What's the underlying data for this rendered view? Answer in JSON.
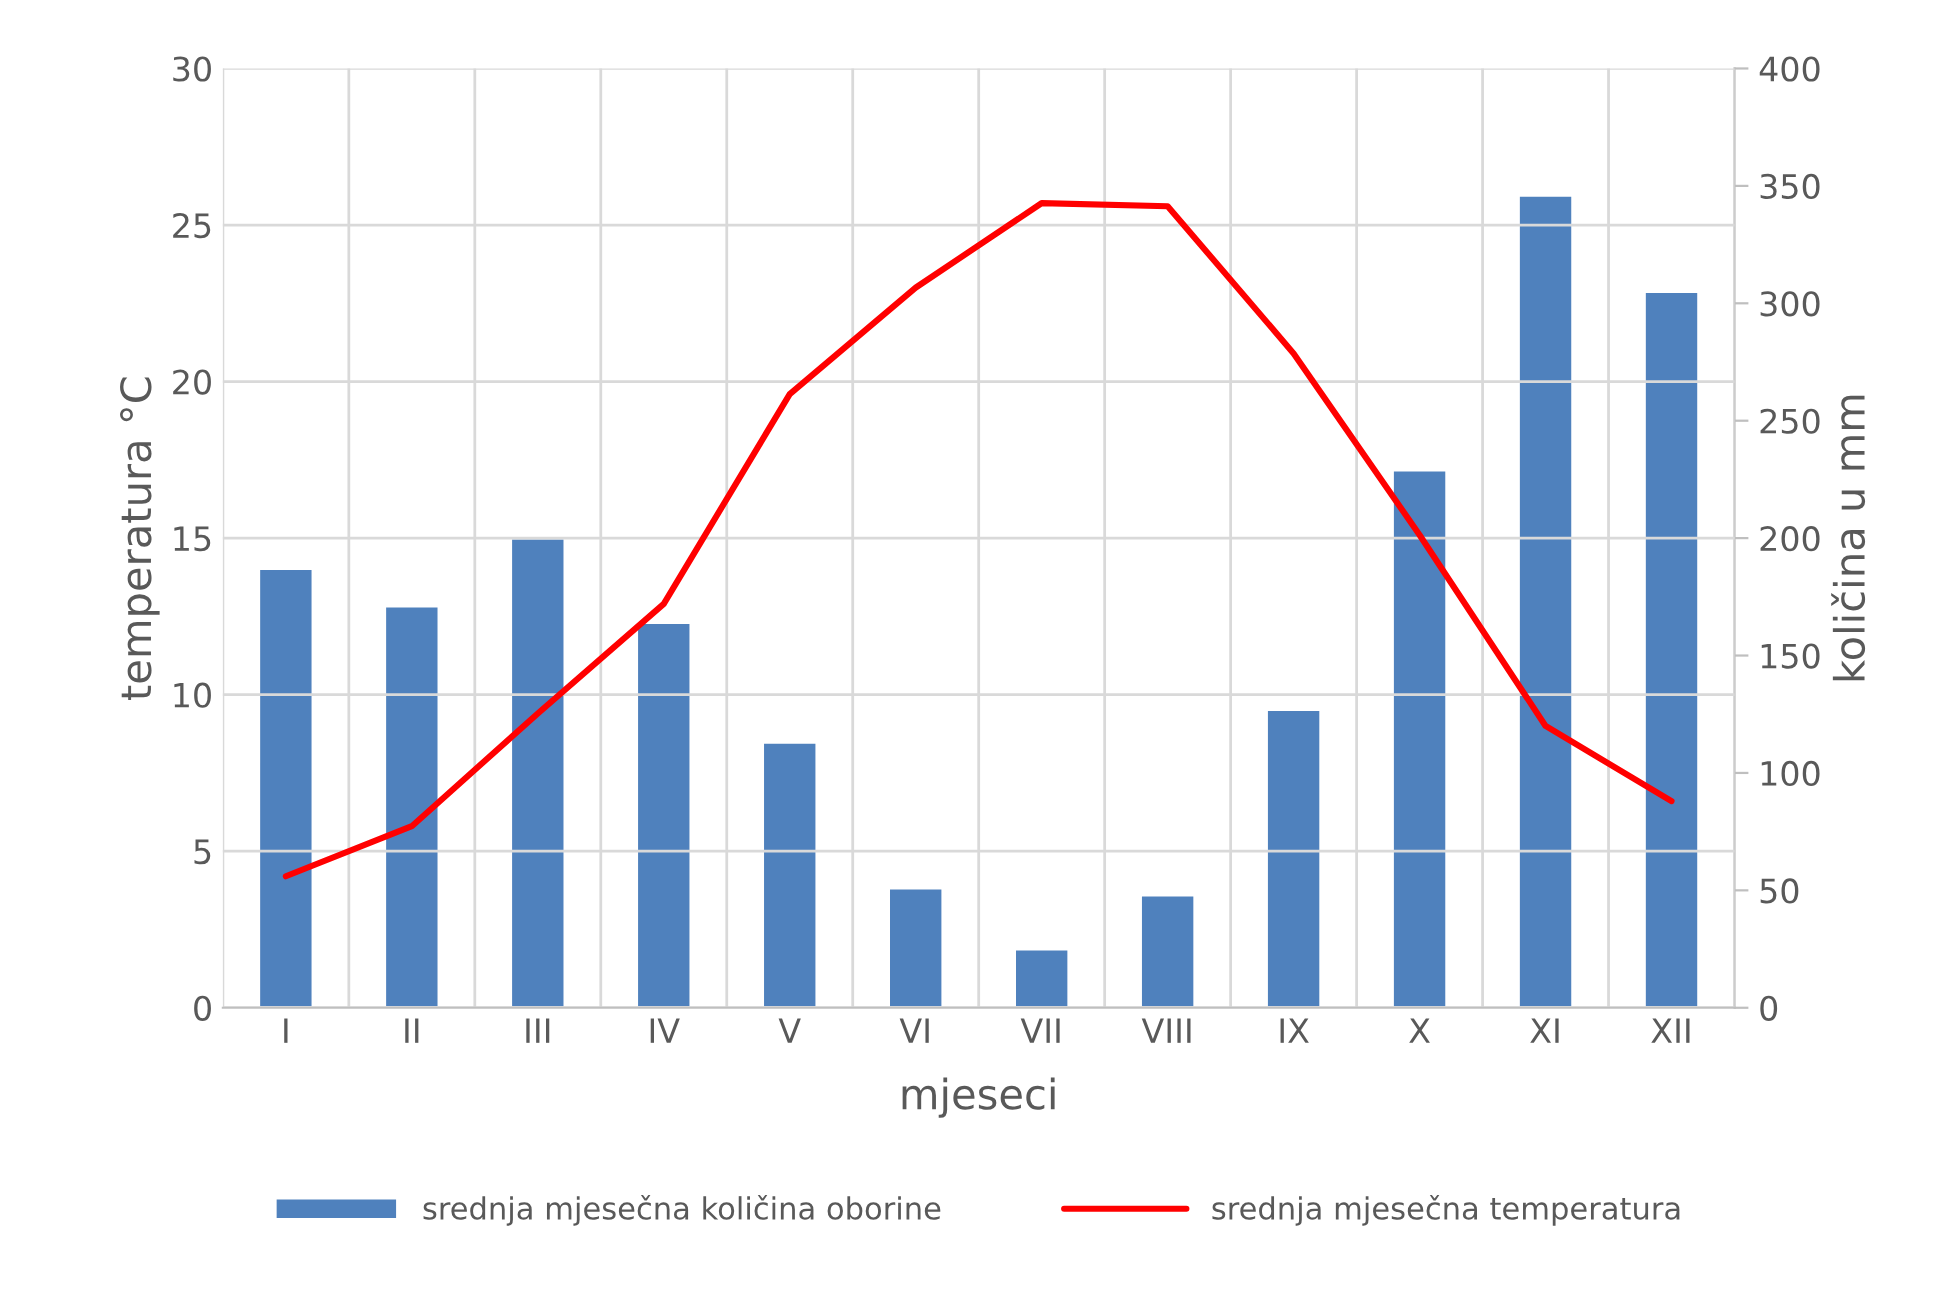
{
  "chart_data": {
    "type": "bar",
    "xlabel": "mjeseci",
    "ylabel": "temperatura °C",
    "y2label": "količina u mm",
    "categories": [
      "I",
      "II",
      "III",
      "IV",
      "V",
      "VI",
      "VII",
      "VIII",
      "IX",
      "X",
      "XI",
      "XII"
    ],
    "series": [
      {
        "name": "srednja mjesečna količina oborine",
        "axis": "y2",
        "color": "#4f81bd",
        "values": [
          187,
          171,
          200,
          164,
          113,
          51,
          25,
          48,
          127,
          229,
          346,
          305
        ]
      },
      {
        "name": "srednja mjesečna temperatura",
        "type": "line",
        "axis": "y",
        "color": "#ff0000",
        "values": [
          4.2,
          5.8,
          9.4,
          12.9,
          19.6,
          23.0,
          25.7,
          25.6,
          20.9,
          15.1,
          9.0,
          6.6
        ]
      }
    ],
    "ylim": [
      0,
      30
    ],
    "yticks": [
      0,
      5,
      10,
      15,
      20,
      25,
      30
    ],
    "y2lim": [
      0,
      400
    ],
    "y2ticks": [
      0,
      50,
      100,
      150,
      200,
      250,
      300,
      350,
      400
    ],
    "grid": true,
    "legend": "bottom",
    "marker": "none",
    "line_style": "solid"
  }
}
